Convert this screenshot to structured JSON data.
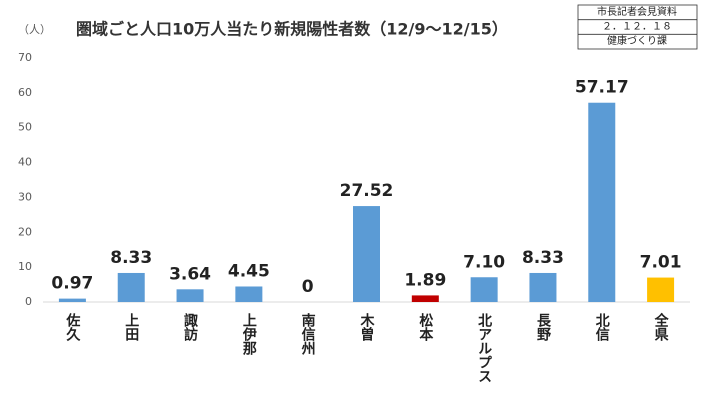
{
  "header_box": [
    "市長記者会見資料",
    "２．１２．１８",
    "健康づくり課"
  ],
  "chart_data": {
    "type": "bar",
    "title": "圏域ごと人口10万人当たり新規陽性者数（12/9～12/15）",
    "y_label": "（人）",
    "categories": [
      "佐久",
      "上田",
      "諏訪",
      "上伊那",
      "南信州",
      "木曽",
      "松本",
      "北アルプス",
      "長野",
      "北信",
      "全県"
    ],
    "values": [
      0.97,
      8.33,
      3.64,
      4.45,
      0,
      27.52,
      1.89,
      7.1,
      8.33,
      57.17,
      7.01
    ],
    "value_labels": [
      "0.97",
      "8.33",
      "3.64",
      "4.45",
      "0",
      "27.52",
      "1.89",
      "7.10",
      "8.33",
      "57.17",
      "7.01"
    ],
    "colors": [
      "#5b9bd5",
      "#5b9bd5",
      "#5b9bd5",
      "#5b9bd5",
      "#5b9bd5",
      "#5b9bd5",
      "#c00000",
      "#5b9bd5",
      "#5b9bd5",
      "#5b9bd5",
      "#ffc000"
    ],
    "ylim": [
      0,
      70
    ],
    "yticks": [
      0,
      10,
      20,
      30,
      40,
      50,
      60,
      70
    ],
    "grid": false
  }
}
